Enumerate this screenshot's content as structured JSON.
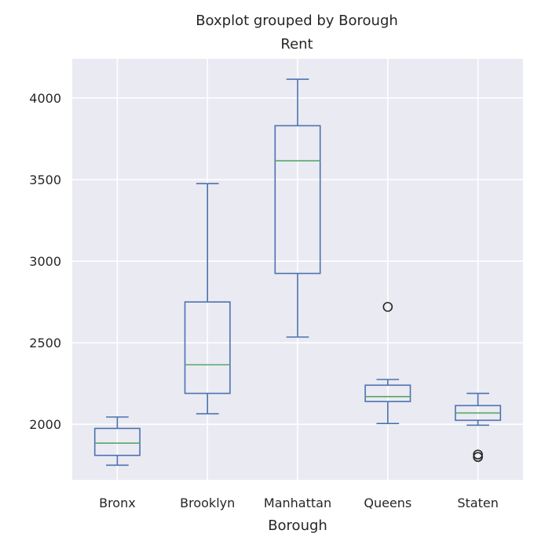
{
  "chart_data": {
    "type": "boxplot",
    "suptitle": "Boxplot grouped by Borough",
    "title": "Rent",
    "xlabel": "Borough",
    "ylabel": "",
    "ylim": [
      1660,
      4240
    ],
    "yticks": [
      2000,
      2500,
      3000,
      3500,
      4000
    ],
    "grid": true,
    "colors": {
      "background": "#eaeaf2",
      "grid": "#ffffff",
      "box": "#4c72b0",
      "median": "#55a868",
      "outlier": "#262626"
    },
    "categories": [
      "Bronx",
      "Brooklyn",
      "Manhattan",
      "Queens",
      "Staten"
    ],
    "boxes": [
      {
        "category": "Bronx",
        "whislo": 1750,
        "q1": 1810,
        "med": 1885,
        "q3": 1975,
        "whishi": 2045,
        "fliers": []
      },
      {
        "category": "Brooklyn",
        "whislo": 2065,
        "q1": 2190,
        "med": 2365,
        "q3": 2750,
        "whishi": 3475,
        "fliers": []
      },
      {
        "category": "Manhattan",
        "whislo": 2535,
        "q1": 2925,
        "med": 3615,
        "q3": 3830,
        "whishi": 4115,
        "fliers": []
      },
      {
        "category": "Queens",
        "whislo": 2005,
        "q1": 2140,
        "med": 2170,
        "q3": 2240,
        "whishi": 2275,
        "fliers": [
          2720
        ]
      },
      {
        "category": "Staten",
        "whislo": 1995,
        "q1": 2025,
        "med": 2070,
        "q3": 2115,
        "whishi": 2190,
        "fliers": [
          1800,
          1815
        ]
      }
    ]
  }
}
